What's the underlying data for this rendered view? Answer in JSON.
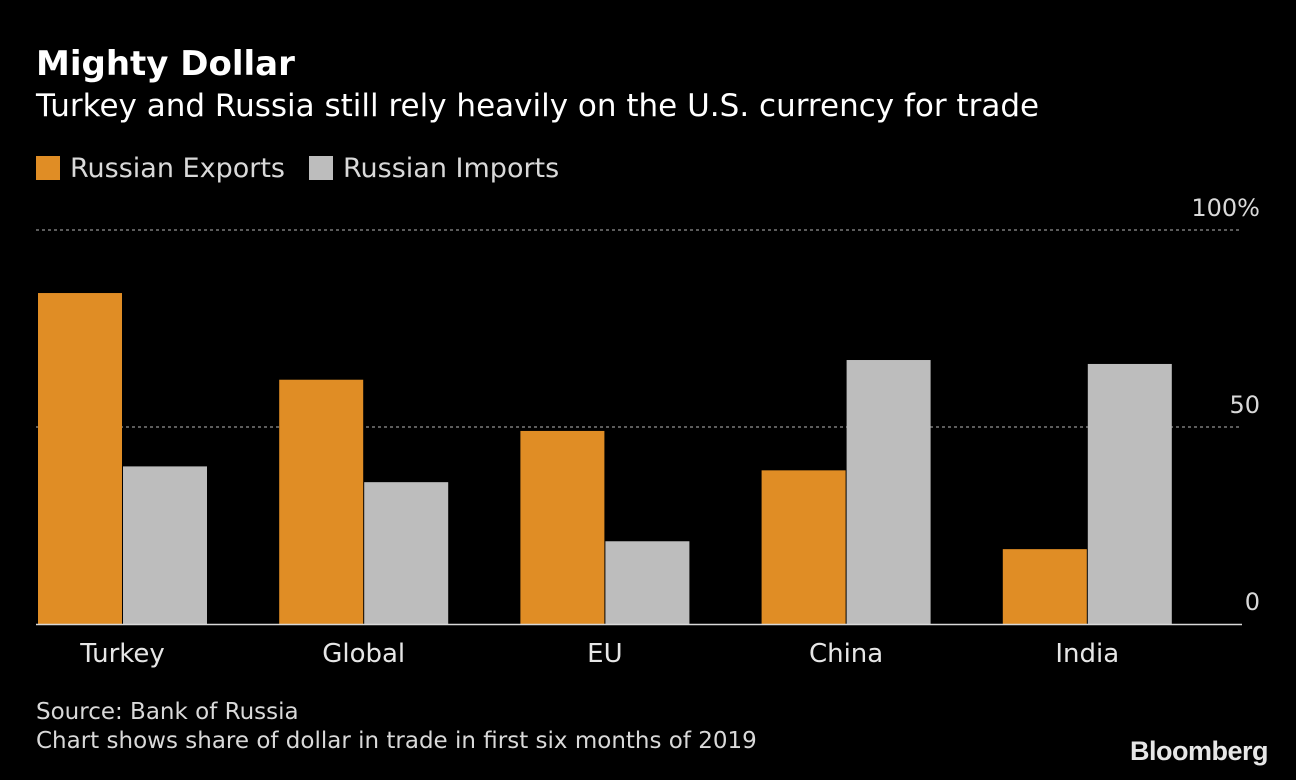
{
  "title": "Mighty Dollar",
  "subtitle": "Turkey and Russia still rely heavily on the U.S. currency for trade",
  "legend": [
    {
      "label": "Russian Exports",
      "color": "#e08d25"
    },
    {
      "label": "Russian Imports",
      "color": "#bdbdbd"
    }
  ],
  "source": {
    "line1": "Source: Bank of Russia",
    "line2": "Chart shows share of dollar in trade in first six months of 2019"
  },
  "brand": "Bloomberg",
  "chart_data": {
    "type": "bar",
    "categories": [
      "Turkey",
      "Global",
      "EU",
      "China",
      "India"
    ],
    "series": [
      {
        "name": "Russian Exports",
        "values": [
          84,
          62,
          49,
          39,
          19
        ],
        "color": "#e08d25"
      },
      {
        "name": "Russian Imports",
        "values": [
          40,
          36,
          21,
          67,
          66
        ],
        "color": "#bdbdbd"
      }
    ],
    "ylim": [
      0,
      100
    ],
    "yticks": [
      0,
      50,
      100
    ],
    "ytick_labels": [
      "0",
      "50",
      "100%"
    ],
    "grid": "dashed horizontal at 50 and 100",
    "legend_position": "top-left",
    "title": "Mighty Dollar",
    "subtitle": "Turkey and Russia still rely heavily on the U.S. currency for trade",
    "xlabel": "",
    "ylabel": ""
  }
}
